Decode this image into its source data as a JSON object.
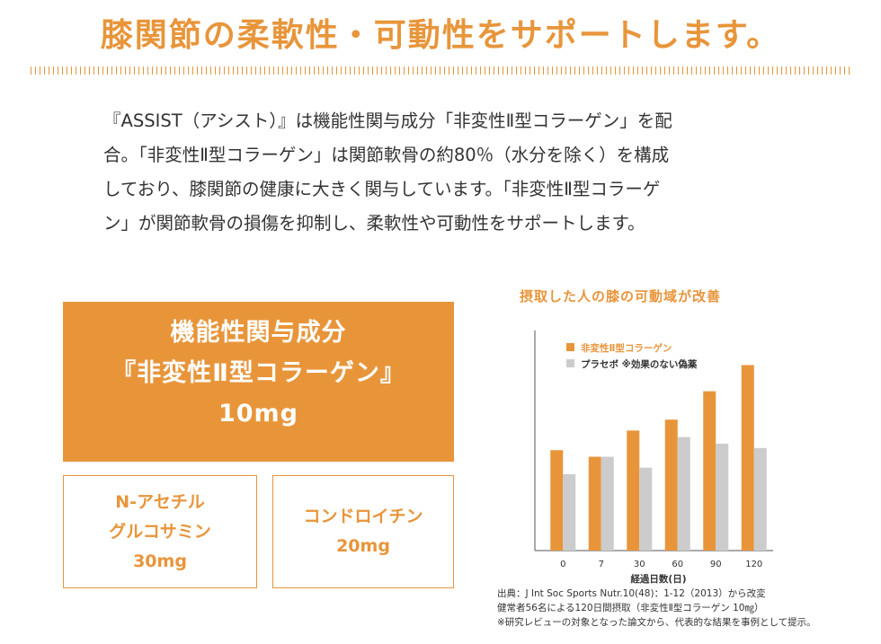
{
  "headline": "膝関節の柔軟性・可動性をサポートします。",
  "intro": {
    "lines": [
      "『ASSIST（アシスト）』は機能性関与成分「非変性Ⅱ型コラーゲン」を配",
      "合。「非変性Ⅱ型コラーゲン」は関節軟骨の約80％（水分を除く）を構成",
      "しており、膝関節の健康に大きく関与しています。「非変性Ⅱ型コラーゲ",
      "ン」が関節軟骨の損傷を抑制し、柔軟性や可動性をサポートします。"
    ]
  },
  "main_ingredient": {
    "line1": "機能性関与成分",
    "line2": "『非変性Ⅱ型コラーゲン』",
    "line3": "10mg"
  },
  "sub_ingredients": [
    {
      "line1": "N-アセチル",
      "line2": "グルコサミン",
      "line3": "30mg"
    },
    {
      "line1": "コンドロイチン",
      "line2": "20mg"
    }
  ],
  "colors": {
    "accent": "#e8953a",
    "placebo": "#cccccc",
    "text": "#333333"
  },
  "chart_data": {
    "type": "bar",
    "title": "摂取した人の膝の可動域が改善",
    "xlabel": "経過日数(日)",
    "ylabel": "",
    "categories": [
      "0",
      "7",
      "30",
      "60",
      "90",
      "120"
    ],
    "series": [
      {
        "name": "非変性Ⅱ型コラーゲン",
        "color": "#e8953a",
        "values": [
          46,
          43,
          55,
          60,
          73,
          85
        ]
      },
      {
        "name": "プラセボ ※効果のない偽薬",
        "color": "#cccccc",
        "values": [
          35,
          43,
          38,
          52,
          49,
          47
        ]
      }
    ],
    "ylim": [
      0,
      100
    ],
    "grid": false,
    "legend": "top-left"
  },
  "notes": [
    "出典：J Int Soc Sports Nutr.10(48)：1-12（2013）から改変",
    "健常者56名による120日間摂取（非変性Ⅱ型コラーゲン 10㎎）",
    "※研究レビューの対象となった論文から、代表的な結果を事例として提示。"
  ]
}
